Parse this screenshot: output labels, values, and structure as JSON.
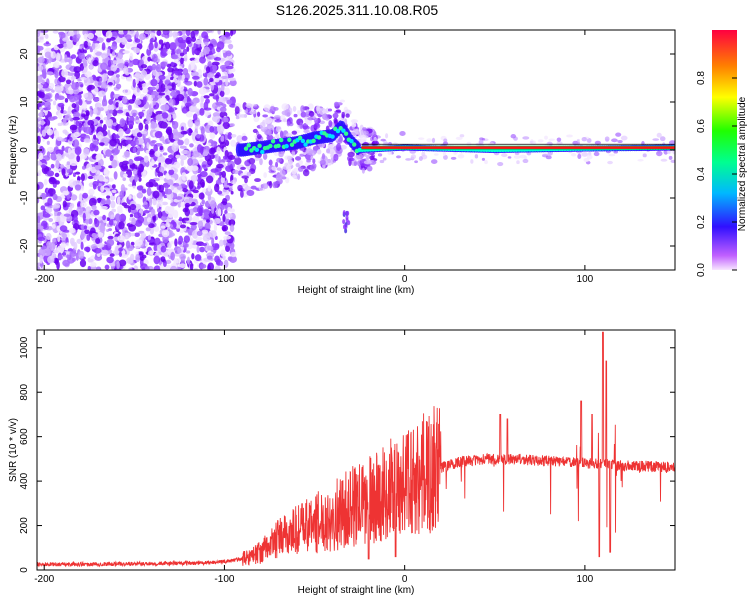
{
  "chart_data": [
    {
      "type": "heatmap",
      "title": "S126.2025.311.10.08.R05",
      "xlabel": "Height of straight line (km)",
      "ylabel": "Frequency (Hz)",
      "xlim": [
        -204,
        150
      ],
      "ylim": [
        -25,
        25
      ],
      "xticks": [
        -200,
        -100,
        0,
        100
      ],
      "yticks": [
        20,
        10,
        0,
        -10,
        -20
      ],
      "colorbar": {
        "label": "Normalized spectral amplitude",
        "range": [
          0,
          1
        ],
        "ticks": [
          0.0,
          0.2,
          0.4,
          0.6,
          0.8
        ]
      },
      "ridge": [
        {
          "x": -90,
          "y": 0
        },
        {
          "x": -80,
          "y": 0.5
        },
        {
          "x": -70,
          "y": 1
        },
        {
          "x": -60,
          "y": 1.5
        },
        {
          "x": -50,
          "y": 2.5
        },
        {
          "x": -40,
          "y": 3
        },
        {
          "x": -35,
          "y": 5
        },
        {
          "x": -30,
          "y": 2
        },
        {
          "x": -25,
          "y": 0
        },
        {
          "x": 0,
          "y": 0.5
        },
        {
          "x": 50,
          "y": 0
        },
        {
          "x": 100,
          "y": 0.3
        },
        {
          "x": 150,
          "y": 0.5
        }
      ]
    },
    {
      "type": "line",
      "xlabel": "Height of straight line (km)",
      "ylabel": "SNR (10 * v/v)",
      "xlim": [
        -204,
        150
      ],
      "ylim": [
        0,
        1080
      ],
      "xticks": [
        -200,
        -100,
        0,
        100
      ],
      "yticks": [
        0,
        200,
        400,
        600,
        800,
        1000
      ],
      "color": "#ee3333",
      "series": [
        {
          "name": "SNR",
          "points": [
            [
              -204,
              25
            ],
            [
              -150,
              28
            ],
            [
              -110,
              32
            ],
            [
              -100,
              38
            ],
            [
              -90,
              50
            ],
            [
              -80,
              80
            ],
            [
              -70,
              140
            ],
            [
              -60,
              180
            ],
            [
              -50,
              210
            ],
            [
              -40,
              240
            ],
            [
              -30,
              280
            ],
            [
              -20,
              310
            ],
            [
              -10,
              350
            ],
            [
              0,
              390
            ],
            [
              10,
              430
            ],
            [
              20,
              460
            ],
            [
              30,
              485
            ],
            [
              40,
              495
            ],
            [
              50,
              500
            ],
            [
              60,
              498
            ],
            [
              70,
              495
            ],
            [
              80,
              490
            ],
            [
              90,
              485
            ],
            [
              100,
              480
            ],
            [
              110,
              478
            ],
            [
              120,
              470
            ],
            [
              130,
              468
            ],
            [
              140,
              465
            ],
            [
              150,
              460
            ]
          ],
          "spikes": [
            {
              "x": 53,
              "y": 700
            },
            {
              "x": 57,
              "y": 680
            },
            {
              "x": 98,
              "y": 760
            },
            {
              "x": 104,
              "y": 700
            },
            {
              "x": 110,
              "y": 1070
            },
            {
              "x": 112,
              "y": 940
            },
            {
              "x": 108,
              "y": 60
            },
            {
              "x": 114,
              "y": 80
            },
            {
              "x": -5,
              "y": 60
            },
            {
              "x": -20,
              "y": 50
            }
          ]
        }
      ]
    }
  ]
}
